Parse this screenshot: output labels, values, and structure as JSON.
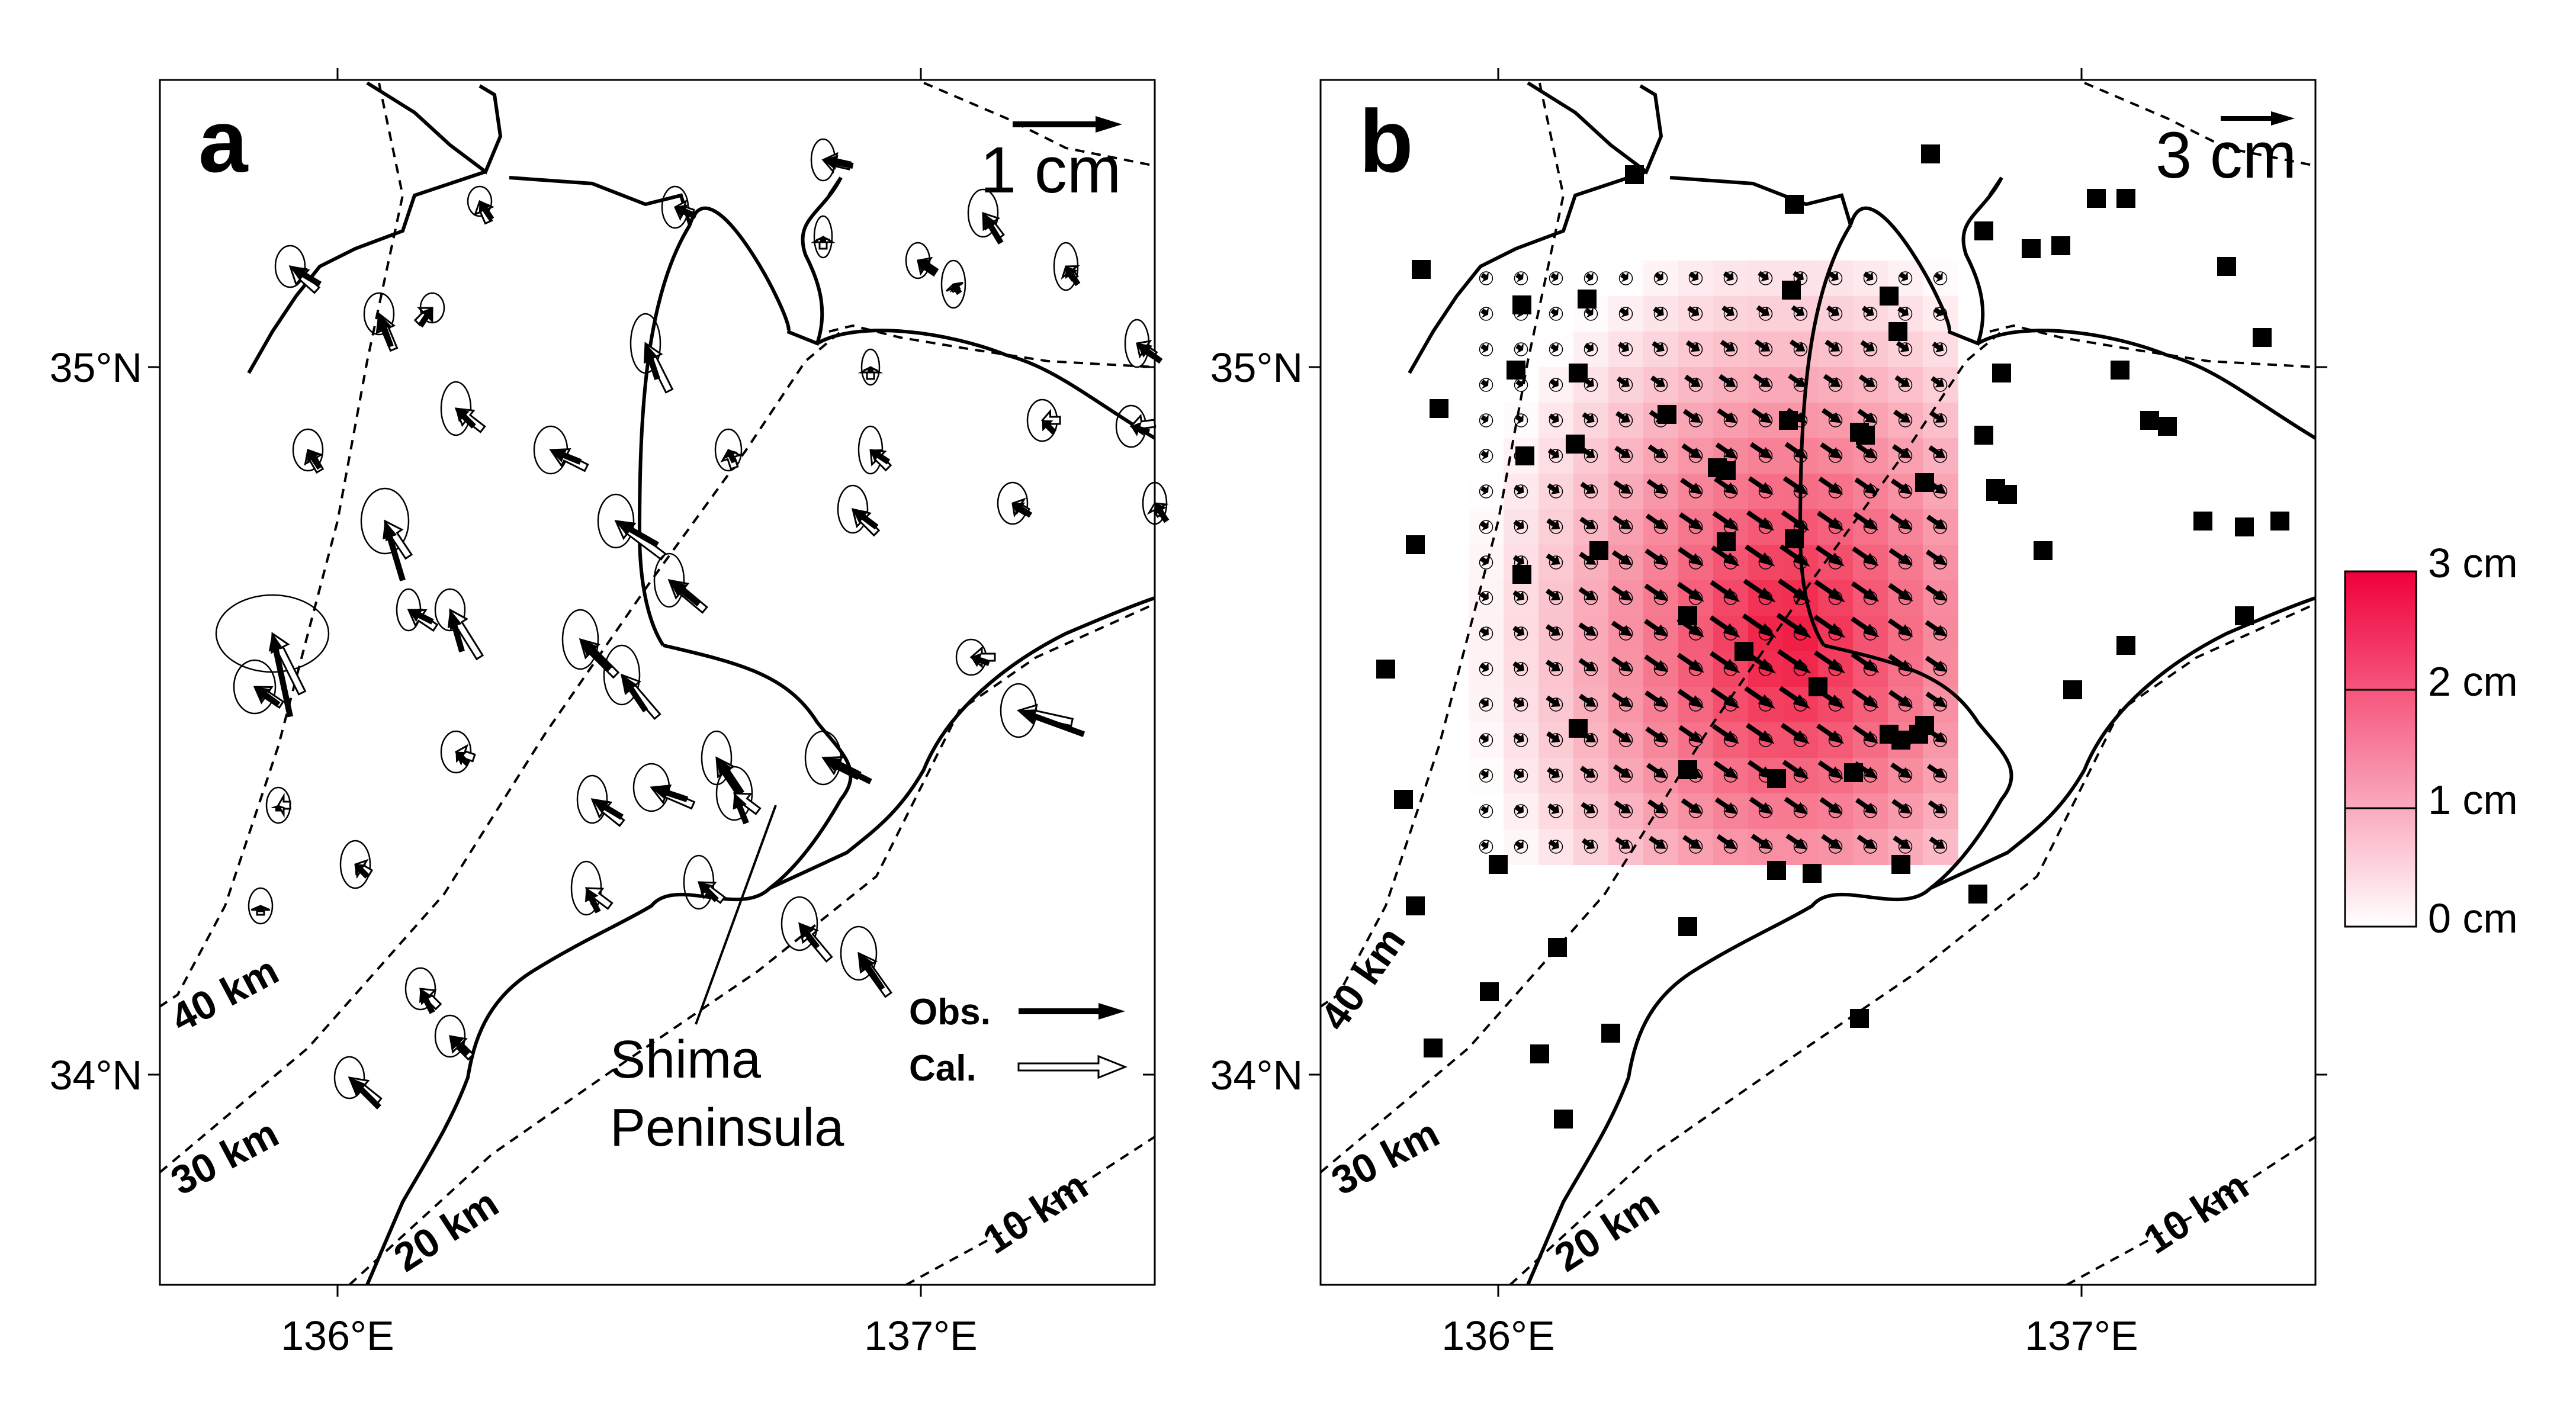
{
  "figure": {
    "panel_a": {
      "label": "a",
      "scale_label": "1 cm",
      "legend": {
        "obs_label": "Obs.",
        "cal_label": "Cal."
      },
      "annotation": {
        "line1": "Shima",
        "line2": "Peninsula"
      },
      "contour_labels": [
        "40 km",
        "30 km",
        "20 km",
        "10 km"
      ]
    },
    "panel_b": {
      "label": "b",
      "scale_label": "3 cm",
      "contour_labels": [
        "40 km",
        "30 km",
        "20 km",
        "10 km"
      ],
      "colorbar": {
        "ticks": [
          "3 cm",
          "2 cm",
          "1 cm",
          "0 cm"
        ],
        "color_high": "#f0003c",
        "color_low": "#ffffff"
      }
    },
    "axes": {
      "lat_labels": [
        "35°N",
        "34°N"
      ],
      "lon_labels": [
        "136°E",
        "137°E"
      ]
    }
  }
}
